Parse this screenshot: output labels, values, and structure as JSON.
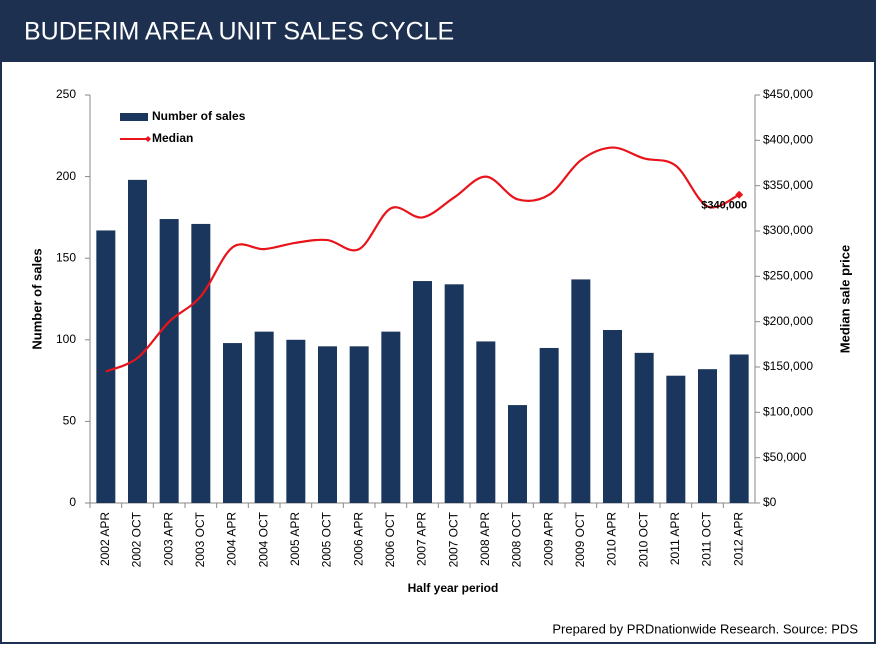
{
  "chart_data": {
    "type": "bar_line",
    "title": "BUDERIM AREA UNIT SALES CYCLE",
    "footer": "Prepared by PRDnationwide Research. Source: PDS",
    "xlabel": "Half year period",
    "ylabel": "Number of sales",
    "y2label": "Median sale price",
    "categories": [
      "2002 APR",
      "2002 OCT",
      "2003 APR",
      "2003 OCT",
      "2004 APR",
      "2004 OCT",
      "2005 APR",
      "2005 OCT",
      "2006 APR",
      "2006 OCT",
      "2007 APR",
      "2007 OCT",
      "2008 APR",
      "2008 OCT",
      "2009 APR",
      "2009 OCT",
      "2010 APR",
      "2010 OCT",
      "2011 APR",
      "2011 OCT",
      "2012 APR"
    ],
    "series": [
      {
        "name": "Number of sales",
        "type": "bar",
        "color": "#1b365d",
        "values": [
          167,
          198,
          174,
          171,
          98,
          105,
          100,
          96,
          96,
          105,
          136,
          134,
          99,
          60,
          95,
          137,
          106,
          92,
          78,
          82,
          91
        ]
      },
      {
        "name": "Median",
        "type": "line",
        "axis": "y2",
        "color": "#e8141a",
        "values": [
          145000,
          160000,
          200000,
          228000,
          282000,
          280000,
          287000,
          290000,
          280000,
          325000,
          315000,
          337000,
          360000,
          335000,
          340000,
          378000,
          392000,
          380000,
          372000,
          327000,
          340000
        ],
        "value_labels": [
          null,
          null,
          null,
          null,
          null,
          null,
          null,
          null,
          null,
          null,
          null,
          null,
          null,
          null,
          null,
          null,
          null,
          null,
          null,
          null,
          "$340,000"
        ]
      }
    ],
    "ylim": [
      0,
      250
    ],
    "yticks": [
      0,
      50,
      100,
      150,
      200,
      250
    ],
    "y2lim": [
      0,
      450000
    ],
    "y2ticks": [
      {
        "value": 0,
        "label": "$0"
      },
      {
        "value": 50000,
        "label": "$50,000"
      },
      {
        "value": 100000,
        "label": "$100,000"
      },
      {
        "value": 150000,
        "label": "$150,000"
      },
      {
        "value": 200000,
        "label": "$200,000"
      },
      {
        "value": 250000,
        "label": "$250,000"
      },
      {
        "value": 300000,
        "label": "$300,000"
      },
      {
        "value": 350000,
        "label": "$350,000"
      },
      {
        "value": 400000,
        "label": "$400,000"
      },
      {
        "value": 450000,
        "label": "$450,000"
      }
    ],
    "legend": "top-left"
  }
}
